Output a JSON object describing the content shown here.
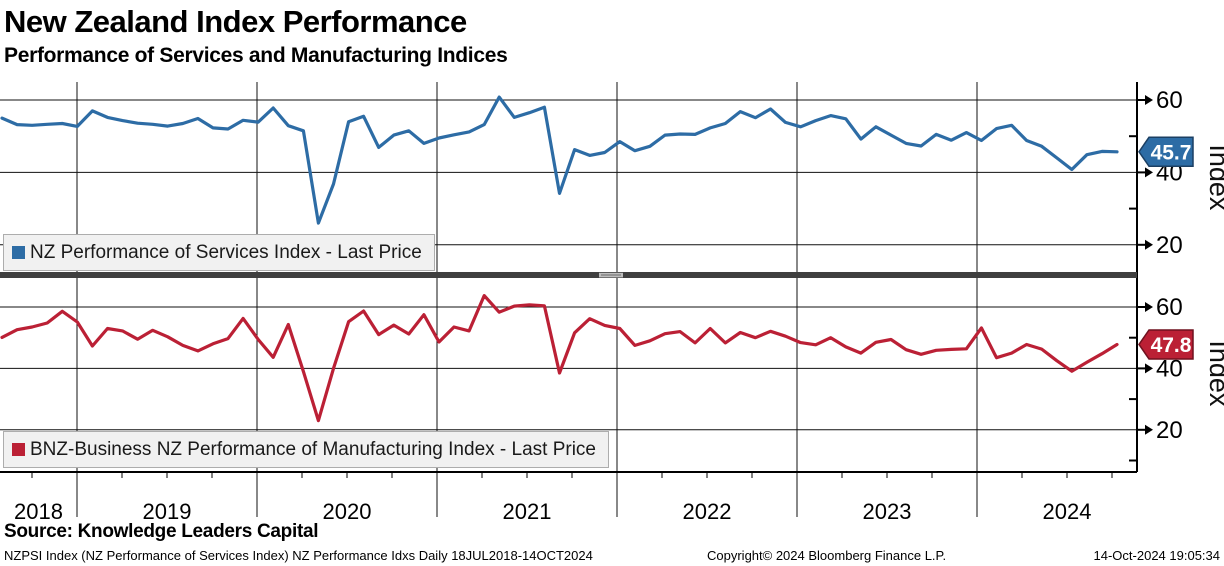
{
  "header": {
    "title": "New Zealand Index Performance",
    "subtitle": "Performance of Services and Manufacturing Indices"
  },
  "footer": {
    "source": "Source: Knowledge Leaders Capital",
    "description": "NZPSI Index (NZ Performance of Services Index) NZ Performance Idxs  Daily 18JUL2018-14OCT2024",
    "copyright": "Copyright© 2024 Bloomberg Finance L.P.",
    "datetime": "14-Oct-2024 19:05:34"
  },
  "colors": {
    "services_blue": "#2d6ca5",
    "manufacturing_red": "#bb2035",
    "grid": "#111111",
    "divider": "#3f3f3f",
    "legend_bg": "#f1f1f1"
  },
  "chart_data": {
    "type": "line",
    "title": "New Zealand Index Performance",
    "ylabel": "Index",
    "grid": "on",
    "x": {
      "freq": "monthly",
      "start": "2018-07",
      "end": "2024-09",
      "range_label": "18JUL2018-14OCT2024",
      "tick_years": [
        "2018",
        "2019",
        "2020",
        "2021",
        "2022",
        "2023",
        "2024"
      ]
    },
    "panels": [
      {
        "name": "services",
        "legend": "NZ Performance of Services Index - Last Price",
        "color": "#2d6ca5",
        "flag_border": "#1b3f63",
        "last_price": "45.7",
        "yticks": [
          20,
          40,
          60
        ],
        "minor_ticks": [
          30,
          50
        ],
        "ylim": [
          13,
          66
        ],
        "values": [
          55.0,
          53.2,
          53.0,
          53.3,
          53.5,
          52.7,
          57.0,
          55.2,
          54.3,
          53.6,
          53.3,
          52.8,
          53.5,
          54.9,
          52.3,
          52.0,
          54.4,
          53.9,
          57.8,
          52.9,
          51.5,
          26.0,
          36.8,
          54.0,
          55.5,
          46.9,
          50.3,
          51.5,
          48.0,
          49.5,
          50.4,
          51.2,
          53.2,
          60.8,
          55.2,
          56.5,
          58.0,
          34.2,
          46.3,
          44.7,
          45.5,
          48.5,
          46.0,
          47.2,
          50.3,
          50.6,
          50.5,
          52.3,
          53.5,
          56.8,
          55.1,
          57.5,
          53.8,
          52.6,
          54.3,
          55.7,
          54.8,
          49.2,
          52.6,
          50.3,
          48.0,
          47.3,
          50.5,
          48.9,
          51.0,
          48.8,
          52.1,
          53.0,
          48.8,
          47.2,
          44.0,
          40.8,
          44.9,
          45.8,
          45.7
        ]
      },
      {
        "name": "manufacturing",
        "legend": "BNZ-Business NZ Performance of Manufacturing Index - Last Price",
        "color": "#bb2035",
        "flag_border": "#6f111f",
        "last_price": "47.8",
        "yticks": [
          20,
          40,
          60
        ],
        "minor_ticks": [
          10,
          30,
          50
        ],
        "ylim": [
          6,
          68
        ],
        "values": [
          50.1,
          52.6,
          53.5,
          54.8,
          58.6,
          55.1,
          47.3,
          53.0,
          52.2,
          49.5,
          52.4,
          50.3,
          47.5,
          45.7,
          48.0,
          49.7,
          56.3,
          49.4,
          43.6,
          54.3,
          39.0,
          23.0,
          40.0,
          55.2,
          58.7,
          51.0,
          54.1,
          51.2,
          57.5,
          48.6,
          53.5,
          52.2,
          63.7,
          58.3,
          60.3,
          60.7,
          60.4,
          38.5,
          51.6,
          56.2,
          54.0,
          53.0,
          47.5,
          49.0,
          51.3,
          52.0,
          48.3,
          53.0,
          48.3,
          51.7,
          50.0,
          52.1,
          50.5,
          48.4,
          47.7,
          50.0,
          47.0,
          45.0,
          48.5,
          49.4,
          46.1,
          44.6,
          45.9,
          46.2,
          46.4,
          53.2,
          43.5,
          45.0,
          47.8,
          46.3,
          42.5,
          39.1,
          42.0,
          44.8,
          47.8
        ]
      }
    ]
  }
}
